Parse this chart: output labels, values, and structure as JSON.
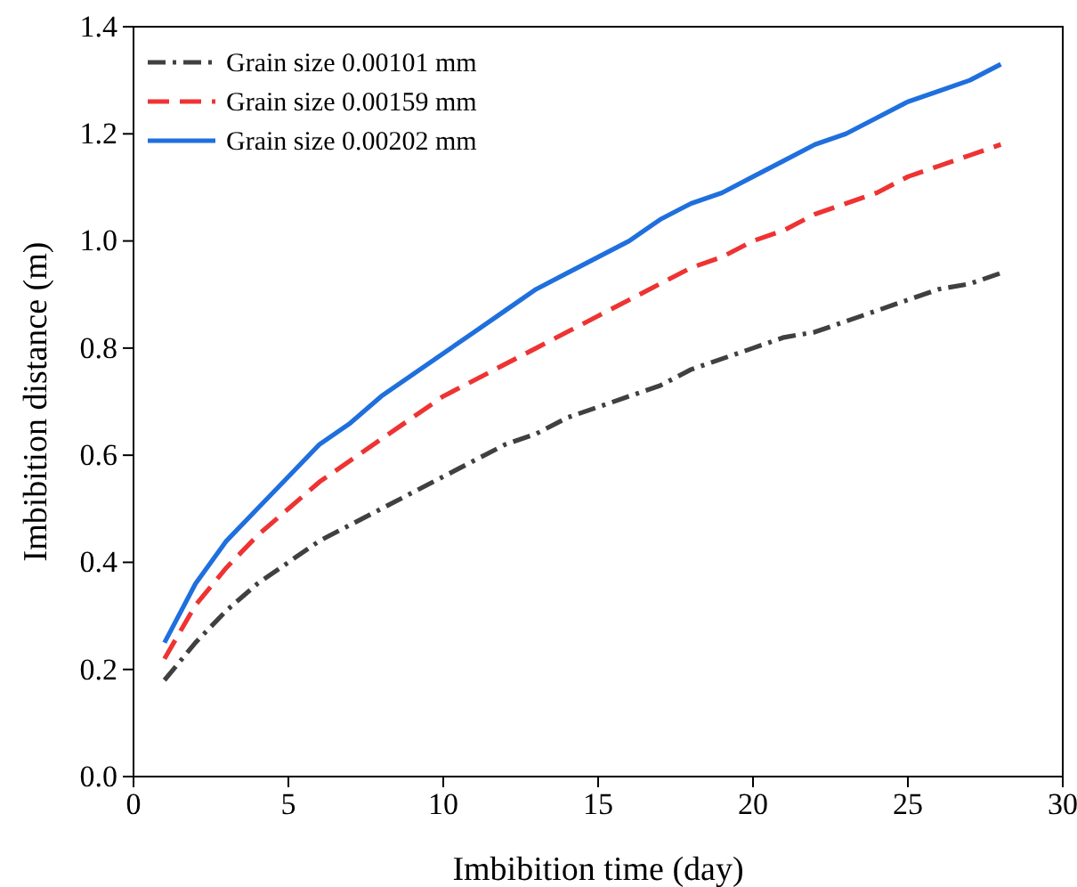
{
  "chart_data": {
    "type": "line",
    "xlabel": "Imbibition time (day)",
    "ylabel": "Imbibition distance (m)",
    "x": [
      1,
      2,
      3,
      4,
      5,
      6,
      7,
      8,
      9,
      10,
      11,
      12,
      13,
      14,
      15,
      16,
      17,
      18,
      19,
      20,
      21,
      22,
      23,
      24,
      25,
      26,
      27,
      28
    ],
    "series": [
      {
        "name": "Grain size 0.00101 mm",
        "color": "#404040",
        "line_style": "dashdot",
        "values": [
          0.18,
          0.25,
          0.31,
          0.36,
          0.4,
          0.44,
          0.47,
          0.5,
          0.53,
          0.56,
          0.59,
          0.62,
          0.64,
          0.67,
          0.69,
          0.71,
          0.73,
          0.76,
          0.78,
          0.8,
          0.82,
          0.83,
          0.85,
          0.87,
          0.89,
          0.91,
          0.92,
          0.94
        ]
      },
      {
        "name": "Grain size 0.00159 mm",
        "color": "#ee3333",
        "line_style": "dashed",
        "values": [
          0.22,
          0.32,
          0.39,
          0.45,
          0.5,
          0.55,
          0.59,
          0.63,
          0.67,
          0.71,
          0.74,
          0.77,
          0.8,
          0.83,
          0.86,
          0.89,
          0.92,
          0.95,
          0.97,
          1.0,
          1.02,
          1.05,
          1.07,
          1.09,
          1.12,
          1.14,
          1.16,
          1.18
        ]
      },
      {
        "name": "Grain size 0.00202 mm",
        "color": "#1f6fde",
        "line_style": "solid",
        "values": [
          0.25,
          0.36,
          0.44,
          0.5,
          0.56,
          0.62,
          0.66,
          0.71,
          0.75,
          0.79,
          0.83,
          0.87,
          0.91,
          0.94,
          0.97,
          1.0,
          1.04,
          1.07,
          1.09,
          1.12,
          1.15,
          1.18,
          1.2,
          1.23,
          1.26,
          1.28,
          1.3,
          1.33
        ]
      }
    ],
    "xlim": [
      0,
      30
    ],
    "xticks": [
      0,
      5,
      10,
      15,
      20,
      25,
      30
    ],
    "ylim": [
      0,
      1.4
    ],
    "yticks": [
      {
        "value": 0,
        "label": "0.0"
      },
      {
        "value": 0.2,
        "label": "0.2"
      },
      {
        "value": 0.4,
        "label": "0.4"
      },
      {
        "value": 0.6,
        "label": "0.6"
      },
      {
        "value": 0.8,
        "label": "0.8"
      },
      {
        "value": 1,
        "label": "1.0"
      },
      {
        "value": 1.2,
        "label": "1.2"
      },
      {
        "value": 1.4,
        "label": "1.4"
      }
    ],
    "legend": "top left",
    "marker": "none"
  }
}
